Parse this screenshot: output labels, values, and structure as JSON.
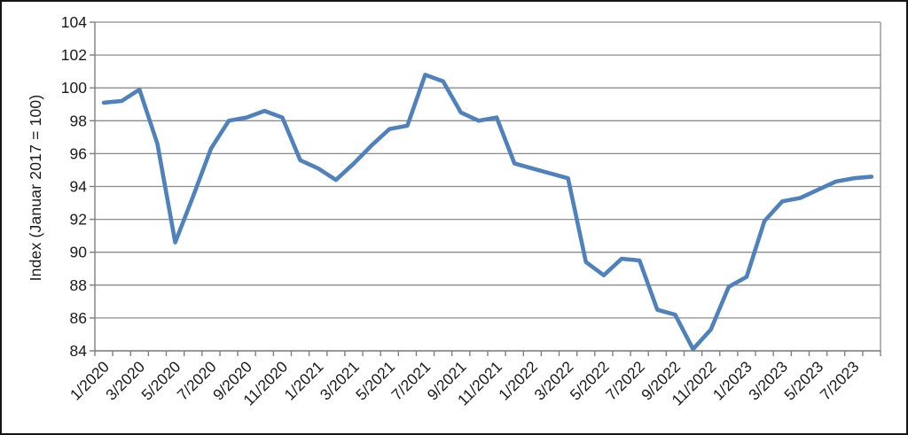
{
  "chart_data": {
    "type": "line",
    "title": "",
    "xlabel": "",
    "ylabel": "Index (Januar 2017 = 100)",
    "ylim": [
      84,
      104
    ],
    "ytick_step": 2,
    "y_tick_labels": [
      "84",
      "86",
      "88",
      "90",
      "92",
      "94",
      "96",
      "98",
      "100",
      "102",
      "104"
    ],
    "grid": "horizontal",
    "legend": "none",
    "x_label_every": 2,
    "x_tick_labels": [
      "1/2020",
      "3/2020",
      "5/2020",
      "7/2020",
      "9/2020",
      "11/2020",
      "1/2021",
      "3/2021",
      "5/2021",
      "7/2021",
      "9/2021",
      "11/2021",
      "1/2022",
      "3/2022",
      "5/2022",
      "7/2022",
      "9/2022",
      "11/2022",
      "1/2023",
      "3/2023",
      "5/2023",
      "7/2023"
    ],
    "categories": [
      "1/2020",
      "2/2020",
      "3/2020",
      "4/2020",
      "5/2020",
      "6/2020",
      "7/2020",
      "8/2020",
      "9/2020",
      "10/2020",
      "11/2020",
      "12/2020",
      "1/2021",
      "2/2021",
      "3/2021",
      "4/2021",
      "5/2021",
      "6/2021",
      "7/2021",
      "8/2021",
      "9/2021",
      "10/2021",
      "11/2021",
      "12/2021",
      "1/2022",
      "2/2022",
      "3/2022",
      "4/2022",
      "5/2022",
      "6/2022",
      "7/2022",
      "8/2022",
      "9/2022",
      "10/2022",
      "11/2022",
      "12/2022",
      "1/2023",
      "2/2023",
      "3/2023",
      "4/2023",
      "5/2023",
      "6/2023",
      "7/2023",
      "8/2023"
    ],
    "series": [
      {
        "name": "Index (Januar 2017 = 100)",
        "color": "#4F81BD",
        "values": [
          99.1,
          99.2,
          99.9,
          96.6,
          90.6,
          93.4,
          96.3,
          98.0,
          98.2,
          98.6,
          98.2,
          95.6,
          95.1,
          94.4,
          95.4,
          96.5,
          97.5,
          97.7,
          100.8,
          100.4,
          98.5,
          98.0,
          98.2,
          95.4,
          95.1,
          94.8,
          94.5,
          89.4,
          88.6,
          89.6,
          89.5,
          86.5,
          86.2,
          84.1,
          85.3,
          87.9,
          88.5,
          91.9,
          93.1,
          93.3,
          93.8,
          94.3,
          94.5,
          94.6
        ]
      }
    ],
    "colors": {
      "line": "#4F81BD",
      "gridline": "#8c8c8c",
      "axis": "#7f7f7f",
      "text": "#1a1a1a",
      "background": "#ffffff"
    }
  }
}
